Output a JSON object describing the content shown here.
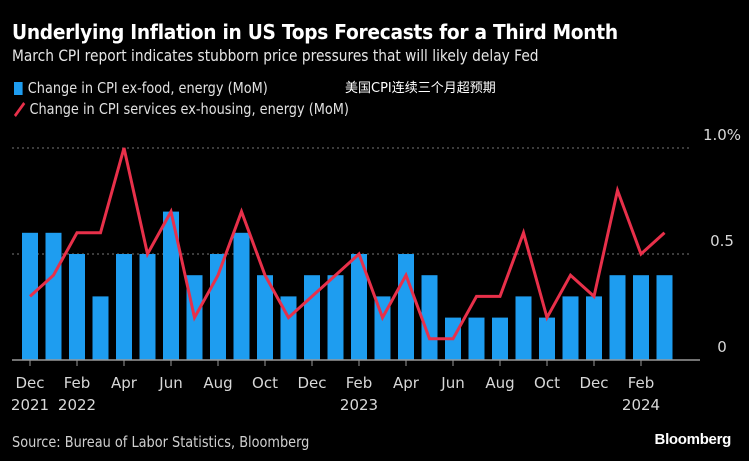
{
  "header": {
    "title": "Underlying Inflation in US Tops Forecasts for a Third Month",
    "subtitle": "March CPI report indicates stubborn price pressures that will likely delay Fed"
  },
  "annotation": "美国CPI连续三个月超预期",
  "footer": {
    "source": "Source: Bureau of Labor Statistics, Bloomberg",
    "brand": "Bloomberg"
  },
  "colors": {
    "bar": "#1e9df0",
    "line": "#e8304a",
    "grid": "#777777",
    "axis": "#999999",
    "background": "#000000"
  },
  "chart_data": {
    "type": "bar",
    "title": "Underlying Inflation in US Tops Forecasts for a Third Month",
    "subtitle": "March CPI report indicates stubborn price pressures that will likely delay Fed",
    "xlabel": "",
    "ylabel": "",
    "ylim": [
      0,
      1.0
    ],
    "y_ticks": [
      {
        "value": 0,
        "label": "0"
      },
      {
        "value": 0.5,
        "label": "0.5"
      },
      {
        "value": 1.0,
        "label": "1.0%"
      }
    ],
    "grid": true,
    "legend_position": "top-left",
    "categories": [
      "Dec 2021",
      "Jan 2022",
      "Feb 2022",
      "Mar 2022",
      "Apr 2022",
      "May 2022",
      "Jun 2022",
      "Jul 2022",
      "Aug 2022",
      "Sep 2022",
      "Oct 2022",
      "Nov 2022",
      "Dec 2022",
      "Jan 2023",
      "Feb 2023",
      "Mar 2023",
      "Apr 2023",
      "May 2023",
      "Jun 2023",
      "Jul 2023",
      "Aug 2023",
      "Sep 2023",
      "Oct 2023",
      "Nov 2023",
      "Dec 2023",
      "Jan 2024",
      "Feb 2024",
      "Mar 2024"
    ],
    "x_tick_labels": [
      {
        "index": 0,
        "month": "Dec",
        "year": "2021"
      },
      {
        "index": 2,
        "month": "Feb",
        "year": "2022"
      },
      {
        "index": 4,
        "month": "Apr",
        "year": ""
      },
      {
        "index": 6,
        "month": "Jun",
        "year": ""
      },
      {
        "index": 8,
        "month": "Aug",
        "year": ""
      },
      {
        "index": 10,
        "month": "Oct",
        "year": ""
      },
      {
        "index": 12,
        "month": "Dec",
        "year": ""
      },
      {
        "index": 14,
        "month": "Feb",
        "year": "2023"
      },
      {
        "index": 16,
        "month": "Apr",
        "year": ""
      },
      {
        "index": 18,
        "month": "Jun",
        "year": ""
      },
      {
        "index": 20,
        "month": "Aug",
        "year": ""
      },
      {
        "index": 22,
        "month": "Oct",
        "year": ""
      },
      {
        "index": 24,
        "month": "Dec",
        "year": ""
      },
      {
        "index": 26,
        "month": "Feb",
        "year": "2024"
      }
    ],
    "series": [
      {
        "name": "Change in CPI ex-food, energy (MoM)",
        "type": "bar",
        "values": [
          0.6,
          0.6,
          0.5,
          0.3,
          0.5,
          0.5,
          0.7,
          0.4,
          0.5,
          0.6,
          0.4,
          0.3,
          0.4,
          0.4,
          0.5,
          0.3,
          0.5,
          0.4,
          0.2,
          0.2,
          0.2,
          0.3,
          0.2,
          0.3,
          0.3,
          0.4,
          0.4,
          0.4
        ]
      },
      {
        "name": "Change in CPI services ex-housing, energy (MoM)",
        "type": "line",
        "values": [
          0.3,
          0.4,
          0.6,
          0.6,
          1.0,
          0.5,
          0.7,
          0.2,
          0.4,
          0.7,
          0.4,
          0.2,
          0.3,
          0.4,
          0.5,
          0.2,
          0.4,
          0.1,
          0.1,
          0.3,
          0.3,
          0.6,
          0.2,
          0.4,
          0.3,
          0.8,
          0.5,
          0.6
        ]
      }
    ]
  }
}
